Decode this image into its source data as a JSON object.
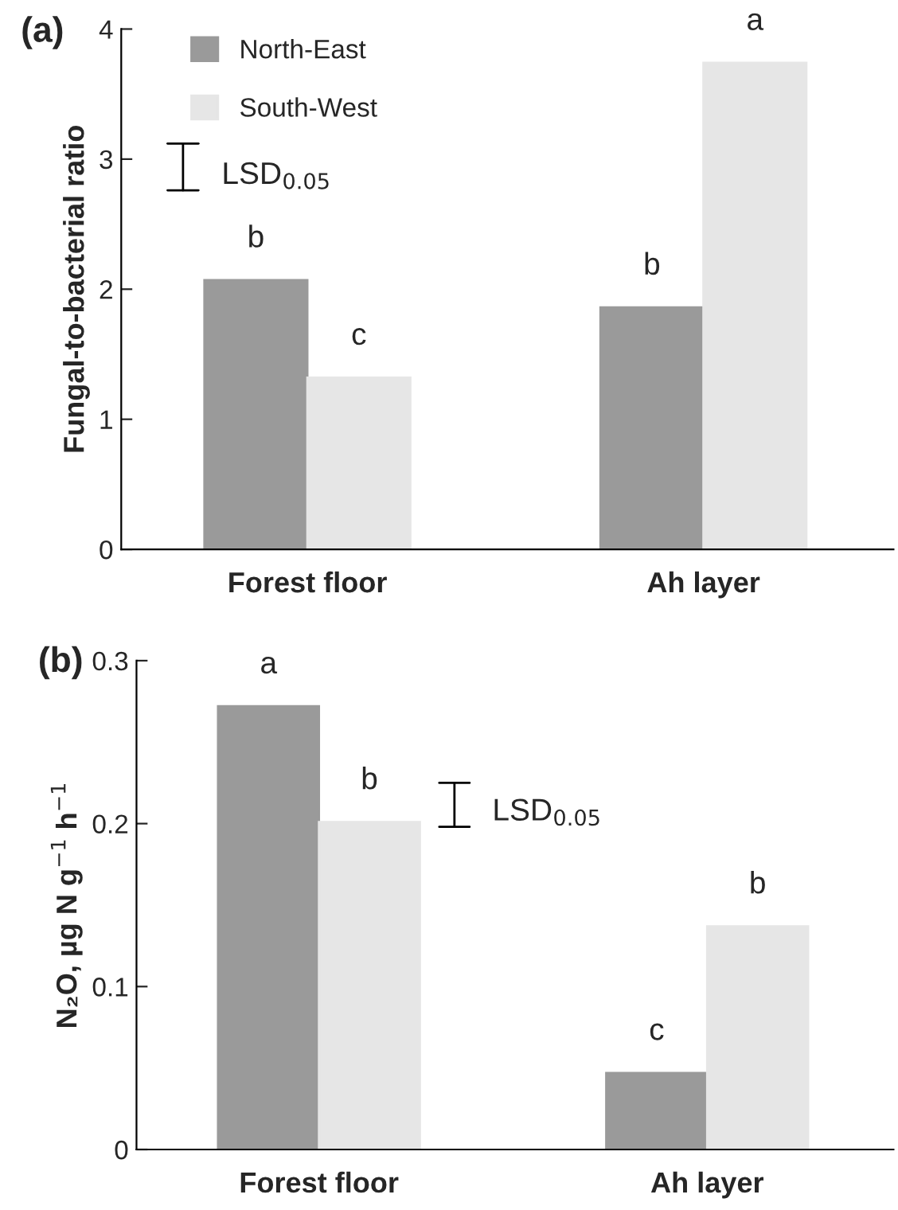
{
  "chart_data": [
    {
      "type": "bar",
      "title": "(a)",
      "ylabel": "Fungal-to-bacterial ratio",
      "categories": [
        "Forest floor",
        "Ah layer"
      ],
      "series": [
        {
          "name": "North-East",
          "color": "#9a9a9a",
          "values": [
            2.07,
            1.86
          ],
          "value_labels": [
            "b",
            "b"
          ]
        },
        {
          "name": "South-West",
          "color": "#e6e6e6",
          "values": [
            1.32,
            3.74
          ],
          "value_labels": [
            "c",
            "a"
          ]
        }
      ],
      "annotations": [
        "LSD$_{0.05}$"
      ],
      "ylim": [
        0,
        4
      ],
      "yticks": [
        0,
        1,
        2,
        3,
        4
      ],
      "legend": "top left",
      "grid": false
    },
    {
      "type": "bar",
      "title": "(b)",
      "ylabel": "N₂O, µg N g$^{−1}$ h$^{−1}$",
      "categories": [
        "Forest floor",
        "Ah layer"
      ],
      "series": [
        {
          "color": "#9a9a9a",
          "values": [
            0.272,
            0.047
          ],
          "value_labels": [
            "a",
            "c"
          ]
        },
        {
          "color": "#e6e6e6",
          "values": [
            0.201,
            0.137
          ],
          "value_labels": [
            "b",
            "b"
          ]
        }
      ],
      "annotations": [
        "LSD$_{0.05}$"
      ],
      "ylim": [
        0,
        0.3
      ],
      "yticks": [
        0,
        0.1,
        0.2,
        0.3
      ],
      "legend": false,
      "grid": false
    }
  ]
}
